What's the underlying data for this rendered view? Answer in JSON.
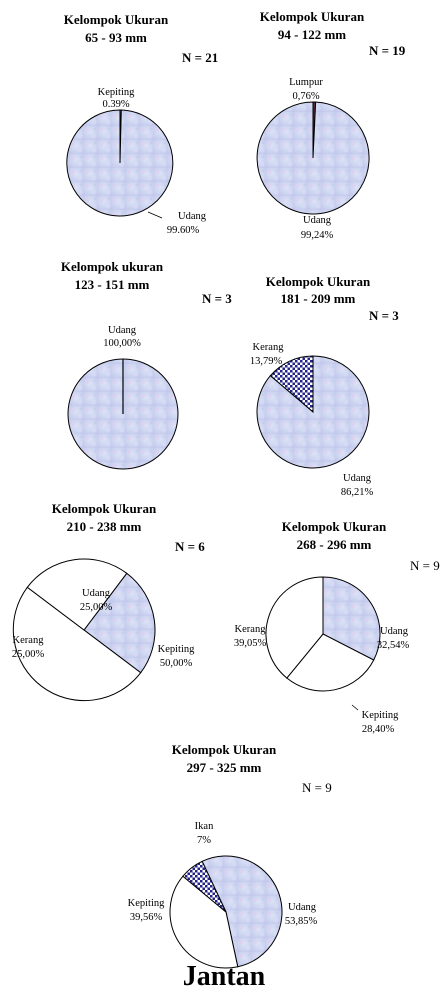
{
  "footer": "Jantan",
  "colors": {
    "udang_fill": "#c9d3f0",
    "udang_tint": "#e6c8ec",
    "white": "#ffffff",
    "dots_fill": "#2a2a8c",
    "outline": "#000000"
  },
  "chart_data": [
    {
      "type": "pie",
      "title_lines": [
        "Kelompok Ukuran",
        "65 - 93 mm"
      ],
      "n_label": "N = 21",
      "slices": [
        {
          "name": "Kepiting",
          "value": 0.39,
          "label": "Kepiting",
          "pct": "0.39%",
          "fill": "hatch"
        },
        {
          "name": "Udang",
          "value": 99.6,
          "label": "Udang",
          "pct": "99.60%",
          "fill": "udang"
        }
      ]
    },
    {
      "type": "pie",
      "title_lines": [
        "Kelompok Ukuran",
        "94 - 122 mm"
      ],
      "n_label": "N = 19",
      "slices": [
        {
          "name": "Lumpur",
          "value": 0.76,
          "label": "Lumpur",
          "pct": "0,76%",
          "fill": "dark"
        },
        {
          "name": "Udang",
          "value": 99.24,
          "label": "Udang",
          "pct": "99,24%",
          "fill": "udang"
        }
      ]
    },
    {
      "type": "pie",
      "title_lines": [
        "Kelompok ukuran",
        "123 - 151 mm"
      ],
      "n_label": "N = 3",
      "slices": [
        {
          "name": "Udang",
          "value": 100,
          "label": "Udang",
          "pct": "100,00%",
          "fill": "udang"
        }
      ]
    },
    {
      "type": "pie",
      "title_lines": [
        "Kelompok Ukuran",
        "181 - 209 mm"
      ],
      "n_label": "N = 3",
      "slices": [
        {
          "name": "Kerang",
          "value": 13.79,
          "label": "Kerang",
          "pct": "13,79%",
          "fill": "dots"
        },
        {
          "name": "Udang",
          "value": 86.21,
          "label": "Udang",
          "pct": "86,21%",
          "fill": "udang"
        }
      ]
    },
    {
      "type": "pie",
      "title_lines": [
        "Kelompok Ukuran",
        "210 - 238 mm"
      ],
      "n_label": "N = 6",
      "slices": [
        {
          "name": "Udang",
          "value": 25.0,
          "label": "Udang",
          "pct": "25,00%",
          "fill": "udang"
        },
        {
          "name": "Kepiting",
          "value": 50.0,
          "label": "Kepiting",
          "pct": "50,00%",
          "fill": "white"
        },
        {
          "name": "Kerang",
          "value": 25.0,
          "label": "Kerang",
          "pct": "25,00%",
          "fill": "white"
        }
      ]
    },
    {
      "type": "pie",
      "title_lines": [
        "Kelompok Ukuran",
        "268 - 296 mm"
      ],
      "n_label": "N = 9",
      "slices": [
        {
          "name": "Udang",
          "value": 32.54,
          "label": "Udang",
          "pct": "32,54%",
          "fill": "udang"
        },
        {
          "name": "Kepiting",
          "value": 28.4,
          "label": "Kepiting",
          "pct": "28,40%",
          "fill": "white"
        },
        {
          "name": "Kerang",
          "value": 39.05,
          "label": "Kerang",
          "pct": "39,05%",
          "fill": "white"
        }
      ]
    },
    {
      "type": "pie",
      "title_lines": [
        "Kelompok Ukuran",
        "297 - 325 mm"
      ],
      "n_label": "N = 9",
      "slices": [
        {
          "name": "Udang",
          "value": 53.85,
          "label": "Udang",
          "pct": "53,85%",
          "fill": "udang"
        },
        {
          "name": "Kepiting",
          "value": 39.56,
          "label": "Kepiting",
          "pct": "39,56%",
          "fill": "white"
        },
        {
          "name": "Ikan",
          "value": 7,
          "label": "Ikan",
          "pct": "7%",
          "fill": "dots"
        }
      ]
    }
  ]
}
